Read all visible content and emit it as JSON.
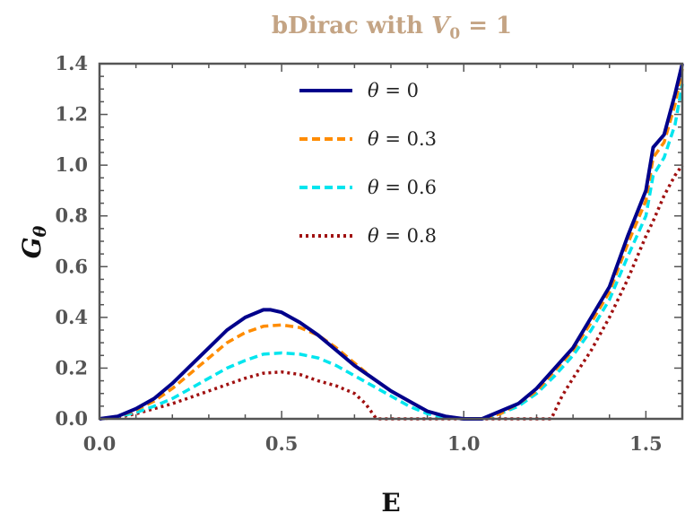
{
  "chart_data": {
    "type": "line",
    "title_prefix": "bDirac with ",
    "title_var": "V",
    "title_sub": "0",
    "title_suffix": " = 1",
    "xlabel": "E",
    "ylabel_main": "G",
    "ylabel_sub": "θ",
    "xlim": [
      0.0,
      1.6
    ],
    "ylim": [
      0.0,
      1.4
    ],
    "xticks": [
      0.0,
      0.5,
      1.0,
      1.5
    ],
    "xtick_labels": [
      "0.0",
      "0.5",
      "1.0",
      "1.5"
    ],
    "yticks": [
      0.0,
      0.2,
      0.4,
      0.6,
      0.8,
      1.0,
      1.2,
      1.4
    ],
    "ytick_labels": [
      "0.0",
      "0.2",
      "0.4",
      "0.6",
      "0.8",
      "1.0",
      "1.2",
      "1.4"
    ],
    "legend_position": "top-center",
    "series": [
      {
        "name": "θ = 0",
        "color": "#00008b",
        "dash": "solid",
        "x": [
          0.0,
          0.05,
          0.1,
          0.15,
          0.2,
          0.25,
          0.3,
          0.35,
          0.4,
          0.45,
          0.47,
          0.5,
          0.55,
          0.6,
          0.65,
          0.7,
          0.75,
          0.8,
          0.85,
          0.9,
          0.95,
          1.0,
          1.05,
          1.1,
          1.15,
          1.2,
          1.25,
          1.3,
          1.35,
          1.4,
          1.45,
          1.5,
          1.52,
          1.55,
          1.58,
          1.6
        ],
        "y": [
          0.0,
          0.01,
          0.04,
          0.08,
          0.14,
          0.21,
          0.28,
          0.35,
          0.4,
          0.43,
          0.43,
          0.42,
          0.38,
          0.33,
          0.27,
          0.21,
          0.16,
          0.11,
          0.07,
          0.03,
          0.01,
          0.0,
          0.0,
          0.03,
          0.06,
          0.12,
          0.2,
          0.28,
          0.4,
          0.52,
          0.72,
          0.9,
          1.07,
          1.12,
          1.28,
          1.4
        ]
      },
      {
        "name": "θ = 0.3",
        "color": "#ff8c00",
        "dash": "dashed",
        "x": [
          0.0,
          0.05,
          0.1,
          0.15,
          0.2,
          0.25,
          0.3,
          0.35,
          0.4,
          0.45,
          0.5,
          0.55,
          0.6,
          0.65,
          0.7,
          0.75,
          0.8,
          0.85,
          0.9,
          0.95,
          1.0,
          1.05,
          1.1,
          1.15,
          1.2,
          1.25,
          1.3,
          1.35,
          1.4,
          1.45,
          1.5,
          1.52,
          1.55,
          1.58,
          1.6
        ],
        "y": [
          0.0,
          0.01,
          0.035,
          0.07,
          0.12,
          0.18,
          0.24,
          0.3,
          0.34,
          0.365,
          0.37,
          0.36,
          0.33,
          0.28,
          0.22,
          0.16,
          0.11,
          0.07,
          0.03,
          0.01,
          0.0,
          0.0,
          0.02,
          0.06,
          0.11,
          0.19,
          0.27,
          0.38,
          0.5,
          0.69,
          0.86,
          1.03,
          1.09,
          1.24,
          1.38
        ]
      },
      {
        "name": "θ = 0.6",
        "color": "#00e5ee",
        "dash": "dashed",
        "x": [
          0.0,
          0.05,
          0.1,
          0.15,
          0.2,
          0.25,
          0.3,
          0.35,
          0.4,
          0.45,
          0.5,
          0.55,
          0.6,
          0.65,
          0.7,
          0.75,
          0.8,
          0.85,
          0.9,
          0.95,
          1.0,
          1.05,
          1.1,
          1.15,
          1.2,
          1.25,
          1.3,
          1.35,
          1.4,
          1.45,
          1.5,
          1.52,
          1.55,
          1.58,
          1.6
        ],
        "y": [
          0.0,
          0.008,
          0.025,
          0.05,
          0.08,
          0.12,
          0.16,
          0.2,
          0.23,
          0.255,
          0.26,
          0.255,
          0.24,
          0.21,
          0.17,
          0.13,
          0.09,
          0.05,
          0.02,
          0.005,
          0.0,
          0.0,
          0.02,
          0.05,
          0.1,
          0.17,
          0.25,
          0.35,
          0.47,
          0.64,
          0.8,
          0.96,
          1.03,
          1.16,
          1.32
        ]
      },
      {
        "name": "θ = 0.8",
        "color": "#a01010",
        "dash": "dotted",
        "x": [
          0.0,
          0.05,
          0.1,
          0.15,
          0.2,
          0.25,
          0.3,
          0.35,
          0.4,
          0.45,
          0.5,
          0.55,
          0.6,
          0.65,
          0.7,
          0.73,
          0.76,
          0.8,
          0.9,
          1.0,
          1.1,
          1.2,
          1.24,
          1.27,
          1.3,
          1.35,
          1.4,
          1.45,
          1.5,
          1.52,
          1.55,
          1.58,
          1.6
        ],
        "y": [
          0.0,
          0.005,
          0.02,
          0.04,
          0.06,
          0.085,
          0.11,
          0.135,
          0.16,
          0.18,
          0.185,
          0.175,
          0.15,
          0.13,
          0.1,
          0.06,
          0.0,
          0.0,
          0.0,
          0.0,
          0.0,
          0.0,
          0.0,
          0.09,
          0.16,
          0.27,
          0.4,
          0.55,
          0.72,
          0.78,
          0.88,
          0.96,
          1.0
        ]
      }
    ]
  }
}
